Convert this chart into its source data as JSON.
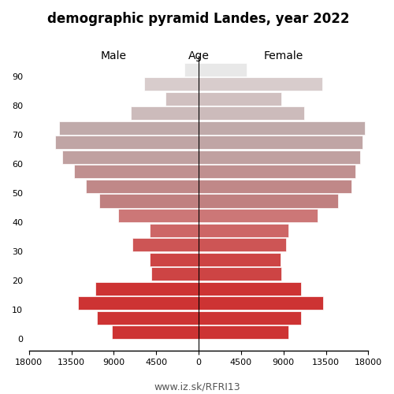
{
  "title": "demographic pyramid Landes, year 2022",
  "male_label": "Male",
  "female_label": "Female",
  "age_label": "Age",
  "footer": "www.iz.sk/RFRI13",
  "age_groups": [
    0,
    5,
    10,
    15,
    20,
    25,
    30,
    35,
    40,
    45,
    50,
    55,
    60,
    65,
    70,
    75,
    80,
    85,
    90
  ],
  "male_values": [
    9200,
    10800,
    12800,
    11000,
    5000,
    5200,
    7000,
    5200,
    8500,
    10500,
    12000,
    13200,
    14500,
    15200,
    14800,
    7200,
    3500,
    5800,
    1500
  ],
  "female_values": [
    9500,
    10900,
    13200,
    10900,
    8800,
    8700,
    9300,
    9500,
    12600,
    14800,
    16200,
    16600,
    17100,
    17400,
    17600,
    11200,
    8800,
    13100,
    5100
  ],
  "male_colors": [
    "#cd3333",
    "#cd3333",
    "#cd3333",
    "#cd3333",
    "#cd4444",
    "#cd4444",
    "#cd5555",
    "#cd6666",
    "#cc7777",
    "#c08080",
    "#c08888",
    "#c09090",
    "#c0a0a0",
    "#c0a5a5",
    "#c0aaaa",
    "#ccbbbb",
    "#d0c0c0",
    "#d8cccc",
    "#e8e8e8"
  ],
  "female_colors": [
    "#cd3333",
    "#cd3333",
    "#cd3333",
    "#cd3333",
    "#cd4444",
    "#cd4444",
    "#cd5555",
    "#cd6666",
    "#cc7777",
    "#c08080",
    "#c08888",
    "#c09090",
    "#c0a0a0",
    "#c0a5a5",
    "#c0aaaa",
    "#ccbbbb",
    "#d0c0c0",
    "#d8cccc",
    "#e8e8e8"
  ],
  "xlim": 18000,
  "xtick_positions": [
    -18000,
    -13500,
    -9000,
    -4500,
    0,
    4500,
    9000,
    13500,
    18000
  ],
  "xtick_labels": [
    "18000",
    "13500",
    "9000",
    "4500",
    "0",
    "4500",
    "9000",
    "13500",
    "18000"
  ],
  "ytick_positions": [
    0,
    10,
    20,
    30,
    40,
    50,
    60,
    70,
    80,
    90
  ],
  "background_color": "#ffffff"
}
